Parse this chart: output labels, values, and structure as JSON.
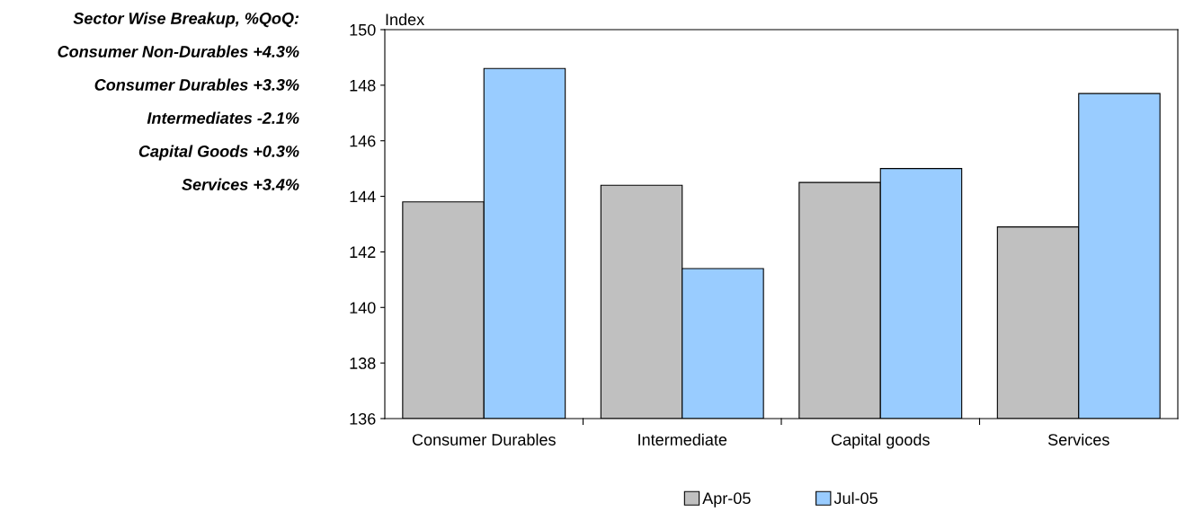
{
  "chart_data": {
    "type": "bar",
    "ylabel": "Index",
    "categories": [
      "Consumer Durables",
      "Intermediate",
      "Capital goods",
      "Services"
    ],
    "series": [
      {
        "name": "Apr-05",
        "color": "#c0c0c0",
        "values": [
          143.8,
          144.4,
          144.5,
          142.9
        ]
      },
      {
        "name": "Jul-05",
        "color": "#99ccff",
        "values": [
          148.6,
          141.4,
          145.0,
          147.7
        ]
      }
    ],
    "ylim": [
      136,
      150
    ],
    "yticks": [
      136,
      138,
      140,
      142,
      144,
      146,
      148,
      150
    ],
    "grid": false,
    "legend": "bottom",
    "annotations": [
      "Sector Wise Breakup, %QoQ:",
      "Consumer Non-Durables +4.3%",
      "Consumer Durables +3.3%",
      "Intermediates -2.1%",
      "Capital Goods +0.3%",
      "Services +3.4%"
    ]
  }
}
